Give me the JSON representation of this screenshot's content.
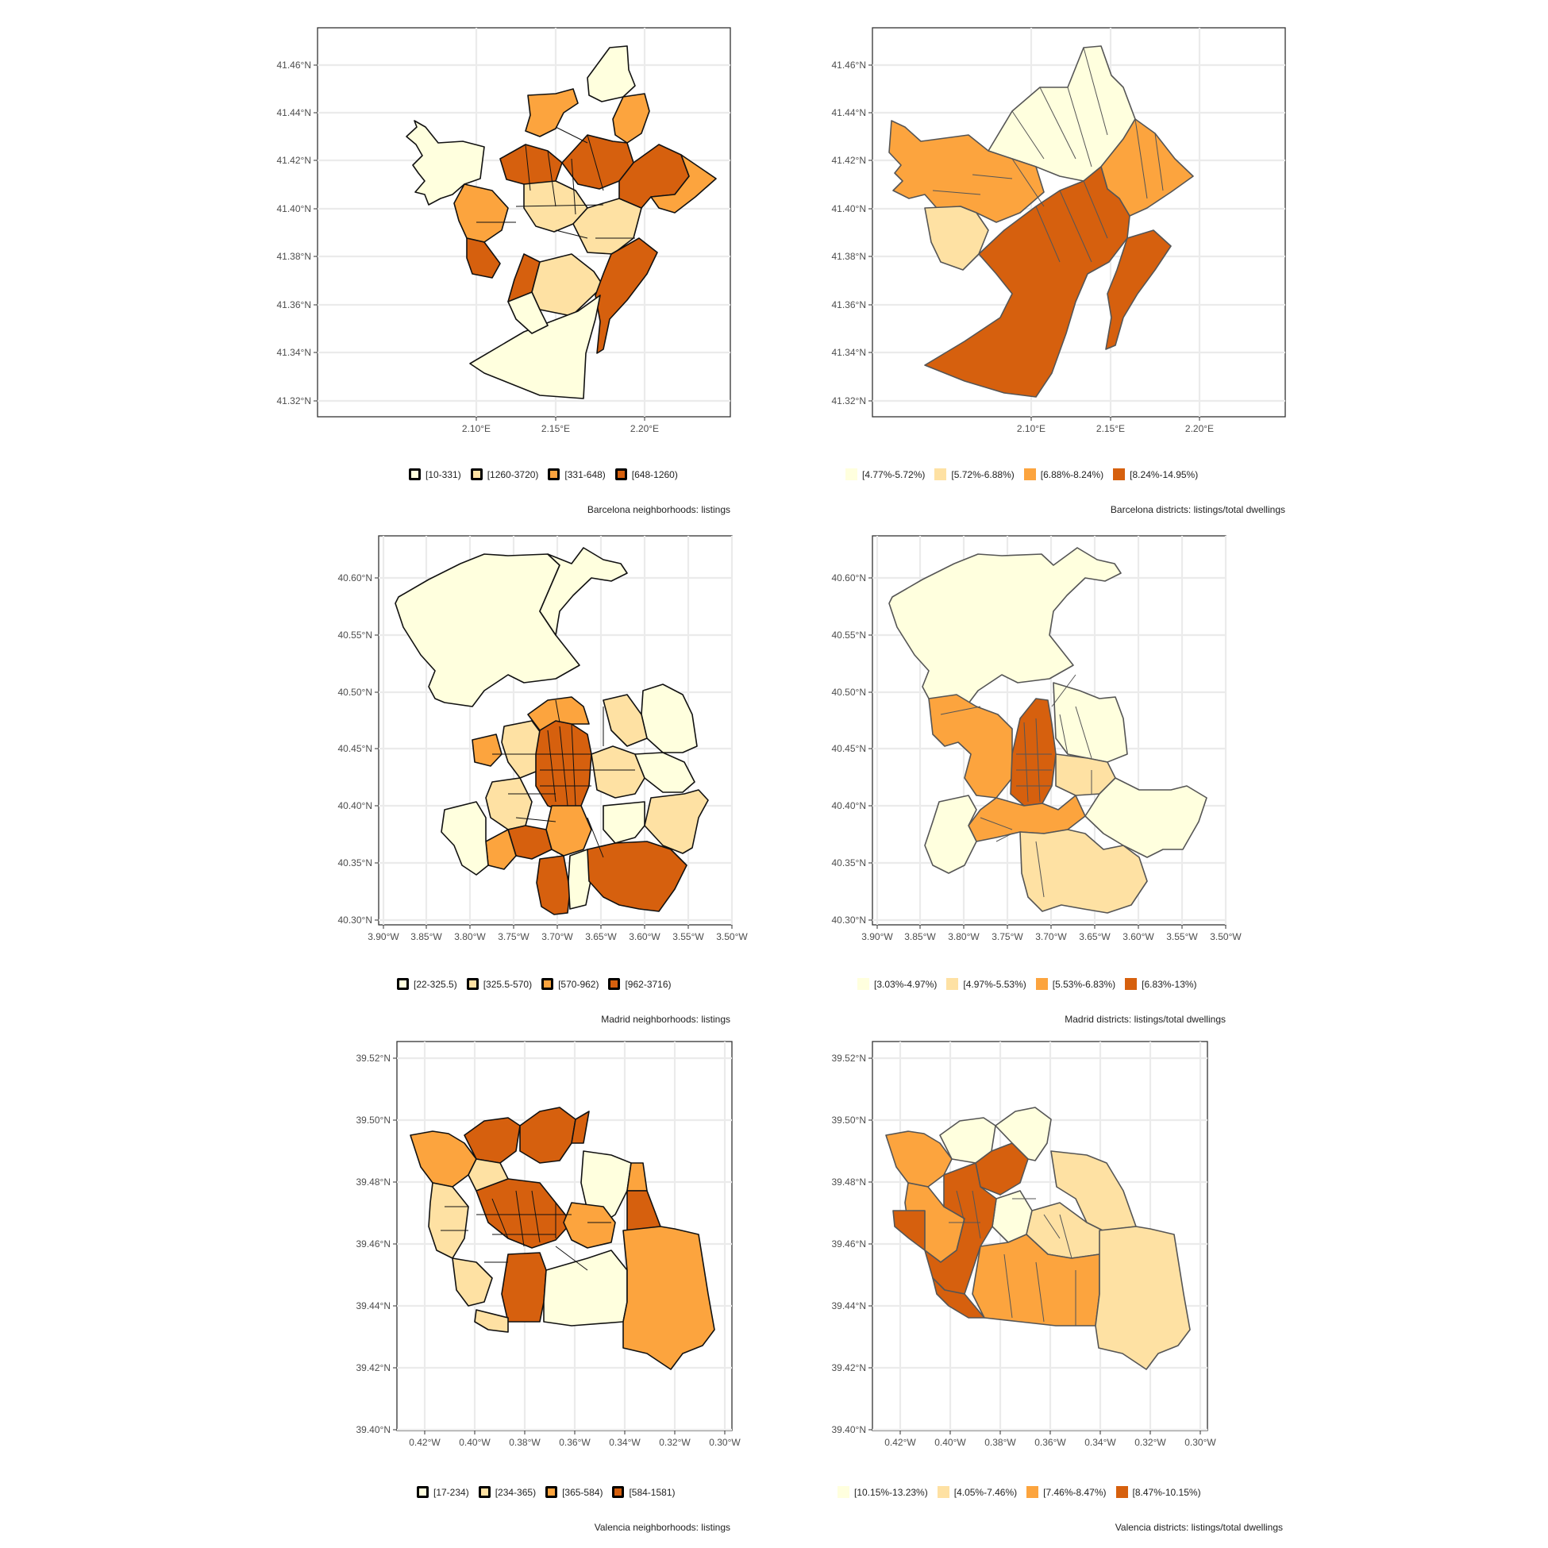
{
  "colors": [
    "#ffffde",
    "#fee1a3",
    "#fca43e",
    "#d6600e"
  ],
  "panels": [
    {
      "id": "bcn-neigh",
      "x_ticks": [
        "2.10°E",
        "2.15°E",
        "2.20°E"
      ],
      "y_ticks": [
        "41.46°N",
        "41.44°N",
        "41.42°N",
        "41.40°N",
        "41.38°N",
        "41.36°N",
        "41.34°N",
        "41.32°N"
      ],
      "legend": [
        "[10-331)",
        "[1260-3720)",
        "[331-648)",
        "[648-1260)"
      ],
      "legend_colors": [
        "#ffffde",
        "#fee1a3",
        "#fca43e",
        "#d6600e"
      ],
      "legend_style": "bold",
      "caption": "Barcelona neighborhoods: listings"
    },
    {
      "id": "bcn-dist",
      "x_ticks": [
        "2.10°E",
        "2.15°E",
        "2.20°E"
      ],
      "y_ticks": [
        "41.46°N",
        "41.44°N",
        "41.42°N",
        "41.40°N",
        "41.38°N",
        "41.36°N",
        "41.34°N",
        "41.32°N"
      ],
      "legend": [
        "[4.77%-5.72%)",
        "[5.72%-6.88%)",
        "[6.88%-8.24%)",
        "[8.24%-14.95%)"
      ],
      "legend_colors": [
        "#ffffde",
        "#fee1a3",
        "#fca43e",
        "#d6600e"
      ],
      "legend_style": "plain",
      "caption": "Barcelona districts: listings/total dwellings"
    },
    {
      "id": "mad-neigh",
      "x_ticks": [
        "3.90°W",
        "3.85°W",
        "3.80°W",
        "3.75°W",
        "3.70°W",
        "3.65°W",
        "3.60°W",
        "3.55°W",
        "3.50°W"
      ],
      "y_ticks": [
        "40.60°N",
        "40.55°N",
        "40.50°N",
        "40.45°N",
        "40.40°N",
        "40.35°N",
        "40.30°N"
      ],
      "legend": [
        "[22-325.5)",
        "[325.5-570)",
        "[570-962)",
        "[962-3716)"
      ],
      "legend_colors": [
        "#ffffde",
        "#fee1a3",
        "#fca43e",
        "#d6600e"
      ],
      "legend_style": "bold",
      "caption": "Madrid neighborhoods: listings"
    },
    {
      "id": "mad-dist",
      "x_ticks": [
        "3.90°W",
        "3.85°W",
        "3.80°W",
        "3.75°W",
        "3.70°W",
        "3.65°W",
        "3.60°W",
        "3.55°W",
        "3.50°W"
      ],
      "y_ticks": [
        "40.60°N",
        "40.55°N",
        "40.50°N",
        "40.45°N",
        "40.40°N",
        "40.35°N",
        "40.30°N"
      ],
      "legend": [
        "[3.03%-4.97%)",
        "[4.97%-5.53%)",
        "[5.53%-6.83%)",
        "[6.83%-13%)"
      ],
      "legend_colors": [
        "#ffffde",
        "#fee1a3",
        "#fca43e",
        "#d6600e"
      ],
      "legend_style": "plain",
      "caption": "Madrid districts: listings/total dwellings"
    },
    {
      "id": "val-neigh",
      "x_ticks": [
        "0.42°W",
        "0.40°W",
        "0.38°W",
        "0.36°W",
        "0.34°W",
        "0.32°W",
        "0.30°W"
      ],
      "y_ticks": [
        "39.52°N",
        "39.50°N",
        "39.48°N",
        "39.46°N",
        "39.44°N",
        "39.42°N",
        "39.40°N"
      ],
      "legend": [
        "[17-234)",
        "[234-365)",
        "[365-584)",
        "[584-1581)"
      ],
      "legend_colors": [
        "#ffffde",
        "#fee1a3",
        "#fca43e",
        "#d6600e"
      ],
      "legend_style": "bold",
      "caption": "Valencia neighborhoods: listings"
    },
    {
      "id": "val-dist",
      "x_ticks": [
        "0.42°W",
        "0.40°W",
        "0.38°W",
        "0.36°W",
        "0.34°W",
        "0.32°W",
        "0.30°W"
      ],
      "y_ticks": [
        "39.52°N",
        "39.50°N",
        "39.48°N",
        "39.46°N",
        "39.44°N",
        "39.42°N",
        "39.40°N"
      ],
      "legend": [
        "[10.15%-13.23%)",
        "[4.05%-7.46%)",
        "[7.46%-8.47%)",
        "[8.47%-10.15%)"
      ],
      "legend_colors": [
        "#ffffde",
        "#fee1a3",
        "#fca43e",
        "#d6600e"
      ],
      "legend_style": "plain",
      "caption": "Valencia districts: listings/total dwellings"
    }
  ]
}
